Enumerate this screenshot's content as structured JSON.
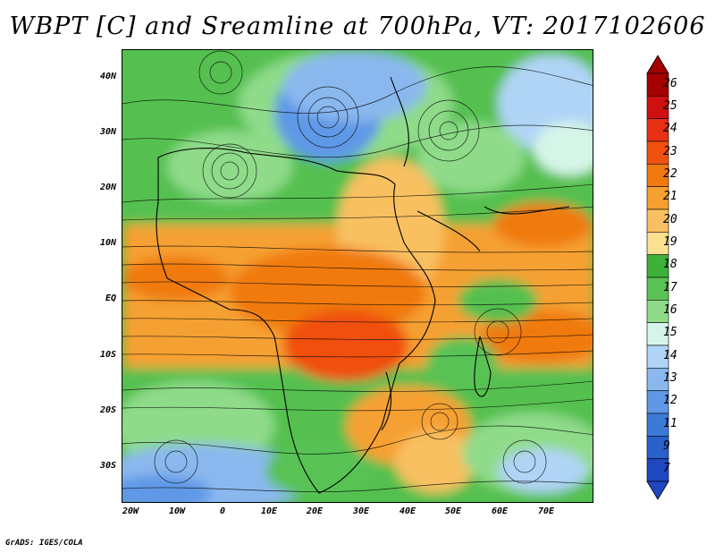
{
  "title": "WBPT [C] and Sreamline at 700hPa, VT: 2017102606",
  "footer": "GrADS: IGES/COLA",
  "lat_labels": [
    "40N",
    "30N",
    "20N",
    "10N",
    "EQ",
    "10S",
    "20S",
    "30S"
  ],
  "lon_labels": [
    "20W",
    "10W",
    "0",
    "10E",
    "20E",
    "30E",
    "40E",
    "50E",
    "60E",
    "70E"
  ],
  "colorbar": {
    "labels": [
      "26",
      "25",
      "24",
      "23",
      "22",
      "21",
      "20",
      "19",
      "18",
      "17",
      "16",
      "15",
      "14",
      "13",
      "12",
      "11",
      "9",
      "7"
    ],
    "colors": [
      "#a50000",
      "#d01010",
      "#e83015",
      "#f05010",
      "#f07a10",
      "#f5a030",
      "#f8c060",
      "#fae090",
      "#3db23a",
      "#58c254",
      "#8fdb8a",
      "#d5f5e8",
      "#b0d4f6",
      "#8ab8ee",
      "#5f98e6",
      "#3c7ad8",
      "#2a60cc",
      "#1e48c0"
    ]
  }
}
